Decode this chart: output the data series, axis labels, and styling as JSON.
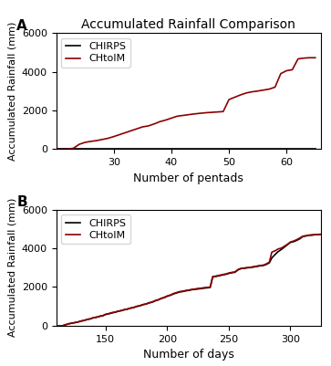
{
  "title": "Accumulated Rainfall Comparison",
  "ylabel": "Accumulated Rainfall (mm)",
  "panel_A": {
    "label": "A",
    "xlabel": "Number of pentads",
    "xlim": [
      20,
      66
    ],
    "ylim": [
      0,
      6000
    ],
    "xticks": [
      30,
      40,
      50,
      60
    ],
    "yticks": [
      0,
      2000,
      4000,
      6000
    ],
    "chtolm_x": [
      20,
      21,
      22,
      23,
      24,
      25,
      26,
      27,
      28,
      29,
      30,
      31,
      32,
      33,
      34,
      35,
      36,
      37,
      38,
      39,
      40,
      41,
      42,
      43,
      44,
      45,
      46,
      47,
      48,
      49,
      50,
      51,
      52,
      53,
      54,
      55,
      56,
      57,
      58,
      59,
      60,
      61,
      62,
      63,
      64,
      65
    ],
    "chtolm_y": [
      0,
      0,
      0,
      50,
      250,
      350,
      400,
      440,
      500,
      560,
      650,
      750,
      850,
      950,
      1050,
      1150,
      1200,
      1300,
      1420,
      1500,
      1600,
      1700,
      1740,
      1780,
      1820,
      1850,
      1880,
      1900,
      1920,
      1940,
      2560,
      2680,
      2800,
      2900,
      2960,
      3000,
      3050,
      3100,
      3200,
      3900,
      4050,
      4100,
      4660,
      4700,
      4720,
      4720
    ]
  },
  "panel_B": {
    "label": "B",
    "xlabel": "Number of days",
    "xlim": [
      110,
      325
    ],
    "ylim": [
      0,
      6000
    ],
    "xticks": [
      150,
      200,
      250,
      300
    ],
    "yticks": [
      0,
      2000,
      4000,
      6000
    ],
    "chirps_x": [
      110,
      115,
      120,
      125,
      128,
      130,
      133,
      135,
      138,
      140,
      143,
      145,
      148,
      150,
      153,
      155,
      158,
      160,
      163,
      165,
      168,
      170,
      173,
      175,
      178,
      180,
      183,
      185,
      188,
      190,
      193,
      195,
      198,
      200,
      203,
      205,
      208,
      210,
      213,
      215,
      218,
      220,
      223,
      225,
      228,
      230,
      233,
      235,
      237,
      240,
      242,
      245,
      248,
      250,
      252,
      255,
      258,
      260,
      263,
      265,
      268,
      270,
      273,
      275,
      278,
      280,
      283,
      285,
      288,
      290,
      293,
      295,
      298,
      300,
      303,
      305,
      308,
      310,
      313,
      315,
      318,
      320,
      323,
      325
    ],
    "chirps_y": [
      0,
      0,
      100,
      160,
      200,
      240,
      280,
      320,
      360,
      410,
      440,
      480,
      520,
      580,
      620,
      660,
      700,
      740,
      780,
      820,
      860,
      900,
      940,
      990,
      1030,
      1080,
      1120,
      1170,
      1220,
      1280,
      1340,
      1400,
      1460,
      1520,
      1580,
      1640,
      1700,
      1740,
      1770,
      1800,
      1830,
      1860,
      1880,
      1900,
      1920,
      1940,
      1960,
      1980,
      2520,
      2550,
      2580,
      2620,
      2660,
      2700,
      2730,
      2760,
      2900,
      2950,
      2970,
      2990,
      3010,
      3030,
      3060,
      3090,
      3110,
      3150,
      3250,
      3500,
      3700,
      3820,
      3950,
      4050,
      4200,
      4300,
      4350,
      4400,
      4500,
      4600,
      4640,
      4670,
      4680,
      4700,
      4710,
      4720
    ],
    "chtolm_x": [
      110,
      115,
      120,
      125,
      128,
      130,
      133,
      135,
      138,
      140,
      143,
      145,
      148,
      150,
      153,
      155,
      158,
      160,
      163,
      165,
      168,
      170,
      173,
      175,
      178,
      180,
      183,
      185,
      188,
      190,
      193,
      195,
      198,
      200,
      203,
      205,
      208,
      210,
      213,
      215,
      218,
      220,
      223,
      225,
      228,
      230,
      233,
      235,
      237,
      240,
      242,
      245,
      248,
      250,
      252,
      255,
      258,
      260,
      263,
      265,
      268,
      270,
      273,
      275,
      278,
      280,
      283,
      285,
      288,
      290,
      293,
      295,
      298,
      300,
      303,
      305,
      308,
      310,
      313,
      315,
      318,
      320,
      323,
      325
    ],
    "chtolm_y": [
      0,
      0,
      100,
      160,
      200,
      240,
      280,
      325,
      365,
      415,
      450,
      490,
      530,
      590,
      635,
      675,
      710,
      750,
      790,
      830,
      870,
      910,
      950,
      1000,
      1040,
      1090,
      1130,
      1180,
      1230,
      1290,
      1350,
      1410,
      1475,
      1535,
      1595,
      1660,
      1720,
      1760,
      1790,
      1820,
      1850,
      1875,
      1900,
      1925,
      1945,
      1965,
      1985,
      2000,
      2540,
      2570,
      2600,
      2640,
      2680,
      2720,
      2750,
      2780,
      2920,
      2960,
      2985,
      3000,
      3020,
      3050,
      3080,
      3110,
      3130,
      3180,
      3280,
      3800,
      3880,
      3960,
      4020,
      4100,
      4220,
      4320,
      4380,
      4440,
      4540,
      4620,
      4655,
      4680,
      4695,
      4710,
      4720,
      4725
    ]
  },
  "chirps_color": "#000000",
  "chtolm_color": "#8B0000",
  "chirps_label": "CHIRPS",
  "chtolm_label": "CHtoIM",
  "background_color": "#ffffff",
  "line_width": 1.2
}
